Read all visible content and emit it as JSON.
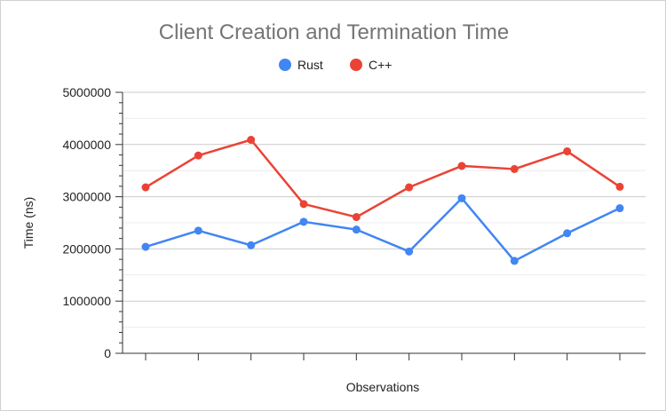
{
  "chart_data": {
    "type": "line",
    "title": "Client Creation and Termination Time",
    "xlabel": "Observations",
    "ylabel": "Time (ns)",
    "ylim": [
      0,
      5000000
    ],
    "y_ticks": [
      "0",
      "1000000",
      "2000000",
      "3000000",
      "4000000",
      "5000000"
    ],
    "x": [
      1,
      2,
      3,
      4,
      5,
      6,
      7,
      8,
      9,
      10
    ],
    "grid": true,
    "legend_position": "top",
    "series": [
      {
        "name": "Rust",
        "color": "#4285f4",
        "values": [
          2040000,
          2350000,
          2070000,
          2520000,
          2370000,
          1950000,
          2970000,
          1770000,
          2300000,
          2780000
        ]
      },
      {
        "name": "C++",
        "color": "#ea4335",
        "values": [
          3180000,
          3790000,
          4090000,
          2860000,
          2610000,
          3180000,
          3590000,
          3530000,
          3870000,
          3190000
        ]
      }
    ]
  }
}
